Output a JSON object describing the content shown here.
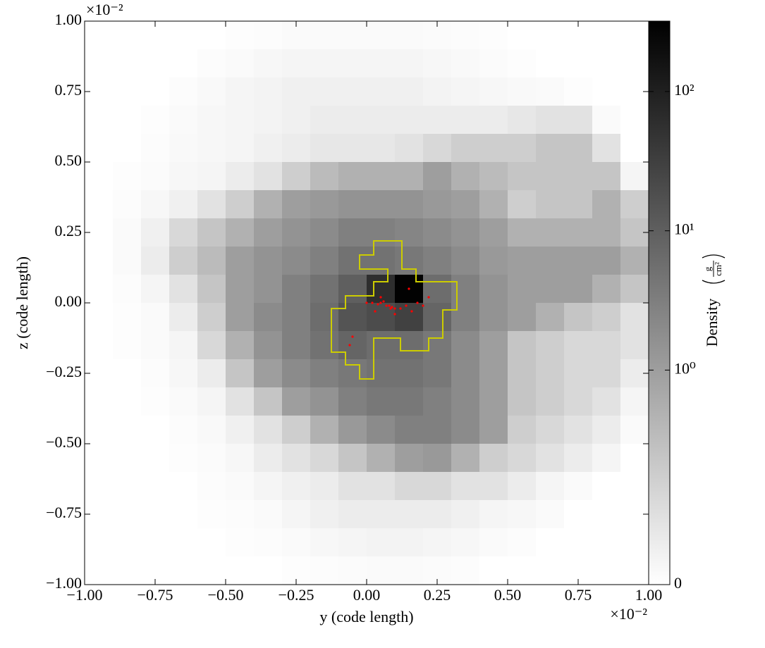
{
  "chart_data": {
    "type": "heatmap",
    "xlabel": "y  (code length)",
    "ylabel": "z  (code length)",
    "x_multiplier": "×10⁻²",
    "y_multiplier": "×10⁻²",
    "xlim": [
      -1,
      1
    ],
    "ylim": [
      -1,
      1
    ],
    "xticks": [
      {
        "value": -1,
        "label": "−1.00"
      },
      {
        "value": -0.75,
        "label": "−0.75"
      },
      {
        "value": -0.5,
        "label": "−0.50"
      },
      {
        "value": -0.25,
        "label": "−0.25"
      },
      {
        "value": 0,
        "label": "0.00"
      },
      {
        "value": 0.25,
        "label": "0.25"
      },
      {
        "value": 0.5,
        "label": "0.50"
      },
      {
        "value": 0.75,
        "label": "0.75"
      },
      {
        "value": 1,
        "label": "1.00"
      }
    ],
    "yticks": [
      {
        "value": -1,
        "label": "−1.00"
      },
      {
        "value": -0.75,
        "label": "−0.75"
      },
      {
        "value": -0.5,
        "label": "−0.50"
      },
      {
        "value": -0.25,
        "label": "−0.25"
      },
      {
        "value": 0,
        "label": "0.00"
      },
      {
        "value": 0.25,
        "label": "0.25"
      },
      {
        "value": 0.5,
        "label": "0.50"
      },
      {
        "value": 0.75,
        "label": "0.75"
      },
      {
        "value": 1,
        "label": "1.00"
      }
    ],
    "z": [
      [
        0,
        0,
        0,
        0,
        0,
        0.02,
        0.03,
        0.05,
        0.05,
        0.05,
        0.05,
        0.05,
        0.04,
        0.03,
        0.02,
        0,
        0,
        0,
        0,
        0
      ],
      [
        0,
        0,
        0,
        0,
        0.03,
        0.05,
        0.08,
        0.1,
        0.1,
        0.1,
        0.1,
        0.1,
        0.08,
        0.06,
        0.04,
        0.02,
        0,
        0,
        0,
        0
      ],
      [
        0,
        0,
        0,
        0.03,
        0.06,
        0.1,
        0.12,
        0.15,
        0.15,
        0.15,
        0.15,
        0.15,
        0.12,
        0.1,
        0.08,
        0.06,
        0.05,
        0.02,
        0,
        0
      ],
      [
        0,
        0,
        0.02,
        0.05,
        0.08,
        0.1,
        0.12,
        0.15,
        0.2,
        0.2,
        0.2,
        0.2,
        0.2,
        0.2,
        0.2,
        0.25,
        0.3,
        0.3,
        0.05,
        0
      ],
      [
        0,
        0,
        0.03,
        0.06,
        0.08,
        0.1,
        0.15,
        0.2,
        0.25,
        0.25,
        0.25,
        0.3,
        0.4,
        0.5,
        0.5,
        0.5,
        0.6,
        0.6,
        0.3,
        0
      ],
      [
        0,
        0.02,
        0.04,
        0.08,
        0.1,
        0.2,
        0.3,
        0.5,
        0.7,
        0.8,
        0.8,
        0.8,
        1,
        0.8,
        0.7,
        0.6,
        0.6,
        0.6,
        0.6,
        0.1
      ],
      [
        0,
        0.03,
        0.08,
        0.15,
        0.3,
        0.5,
        0.8,
        1,
        1.2,
        1.5,
        1.5,
        1.5,
        1.2,
        1,
        0.8,
        0.5,
        0.6,
        0.6,
        0.8,
        0.5
      ],
      [
        0,
        0.05,
        0.15,
        0.4,
        0.6,
        0.8,
        1,
        1.5,
        2,
        3,
        3,
        2.5,
        2,
        1.5,
        1,
        0.8,
        0.8,
        0.8,
        0.8,
        0.6
      ],
      [
        0,
        0.05,
        0.2,
        0.5,
        0.7,
        1,
        1.5,
        2,
        3,
        5,
        5,
        4,
        3,
        2,
        1.2,
        1,
        1,
        1,
        1,
        0.8
      ],
      [
        0,
        0.03,
        0.1,
        0.3,
        0.6,
        1,
        1.5,
        3,
        5,
        10,
        60,
        300,
        6,
        3,
        1.5,
        1,
        1,
        1,
        0.8,
        0.6
      ],
      [
        0,
        0.02,
        0.05,
        0.2,
        0.5,
        1,
        2,
        3,
        6,
        15,
        20,
        30,
        8,
        3,
        1.5,
        1,
        0.8,
        0.6,
        0.5,
        0.3
      ],
      [
        0,
        0.02,
        0.05,
        0.1,
        0.4,
        0.8,
        1.5,
        3,
        5,
        8,
        6,
        6,
        4,
        2,
        1,
        0.6,
        0.5,
        0.4,
        0.4,
        0.3
      ],
      [
        0,
        0,
        0.03,
        0.08,
        0.2,
        0.6,
        1,
        2,
        3,
        4,
        5,
        5,
        4,
        2,
        1,
        0.6,
        0.5,
        0.4,
        0.4,
        0.2
      ],
      [
        0,
        0,
        0.02,
        0.05,
        0.1,
        0.3,
        0.6,
        1,
        1.5,
        3,
        4,
        4,
        3,
        2,
        1,
        0.6,
        0.5,
        0.4,
        0.3,
        0.1
      ],
      [
        0,
        0,
        0,
        0.03,
        0.06,
        0.15,
        0.3,
        0.5,
        0.8,
        1.2,
        2,
        3,
        3,
        2,
        1,
        0.5,
        0.4,
        0.3,
        0.2,
        0.05
      ],
      [
        0,
        0,
        0,
        0.02,
        0.04,
        0.08,
        0.2,
        0.3,
        0.4,
        0.6,
        0.8,
        1,
        1.2,
        0.8,
        0.5,
        0.4,
        0.3,
        0.2,
        0.1,
        0
      ],
      [
        0,
        0,
        0,
        0,
        0.03,
        0.05,
        0.1,
        0.15,
        0.2,
        0.3,
        0.3,
        0.4,
        0.4,
        0.3,
        0.3,
        0.2,
        0.1,
        0.05,
        0,
        0
      ],
      [
        0,
        0,
        0,
        0,
        0.02,
        0.03,
        0.05,
        0.1,
        0.15,
        0.2,
        0.2,
        0.2,
        0.2,
        0.15,
        0.1,
        0.08,
        0.05,
        0,
        0,
        0
      ],
      [
        0,
        0,
        0,
        0,
        0,
        0.02,
        0.03,
        0.05,
        0.08,
        0.1,
        0.12,
        0.12,
        0.1,
        0.08,
        0.05,
        0.03,
        0,
        0,
        0,
        0
      ],
      [
        0,
        0,
        0,
        0,
        0,
        0,
        0,
        0.02,
        0.03,
        0.04,
        0.05,
        0.05,
        0.04,
        0.03,
        0,
        0,
        0,
        0,
        0,
        0
      ]
    ],
    "colorbar": {
      "label": "Density",
      "unit_numerator": "g",
      "unit_denominator": "cm²",
      "scale": "symlog",
      "linthresh": 1,
      "linscale": 1.54,
      "clim": [
        0,
        320
      ],
      "ticks": [
        0,
        {
          "value": 1,
          "label": "10⁰"
        },
        {
          "value": 10,
          "label": "10¹"
        },
        {
          "value": 100,
          "label": "10²"
        }
      ]
    },
    "contour": {
      "color": "#cccc00",
      "x": [
        0.025,
        0.125,
        0.125,
        0.175,
        0.175,
        0.32,
        0.32,
        0.27,
        0.27,
        0.22,
        0.22,
        0.12,
        0.12,
        0.025,
        0.025,
        -0.025,
        -0.025,
        -0.075,
        -0.075,
        -0.125,
        -0.125,
        -0.075,
        -0.075,
        0.025,
        0.025,
        0.075,
        0.075,
        -0.025,
        -0.025,
        0.025
      ],
      "y": [
        0.22,
        0.22,
        0.12,
        0.12,
        0.075,
        0.075,
        -0.025,
        -0.025,
        -0.125,
        -0.125,
        -0.17,
        -0.17,
        -0.125,
        -0.125,
        -0.27,
        -0.27,
        -0.22,
        -0.22,
        -0.175,
        -0.175,
        -0.02,
        -0.02,
        0.025,
        0.025,
        0.075,
        0.075,
        0.12,
        0.12,
        0.17,
        0.17
      ]
    },
    "particles": {
      "color": "#ff0000",
      "x": [
        0.0,
        0.02,
        0.04,
        0.05,
        0.06,
        0.07,
        0.08,
        0.085,
        0.09,
        0.1,
        0.12,
        0.14,
        0.16,
        0.18,
        0.2,
        0.22,
        0.03,
        0.1,
        -0.05,
        -0.06,
        0.15,
        0.05
      ],
      "y": [
        0.0,
        0.0,
        -0.005,
        0.0,
        0.005,
        -0.01,
        -0.01,
        -0.02,
        -0.015,
        -0.02,
        -0.02,
        -0.01,
        -0.03,
        0.0,
        -0.01,
        0.02,
        -0.03,
        -0.04,
        -0.12,
        -0.15,
        0.05,
        0.02
      ]
    }
  }
}
